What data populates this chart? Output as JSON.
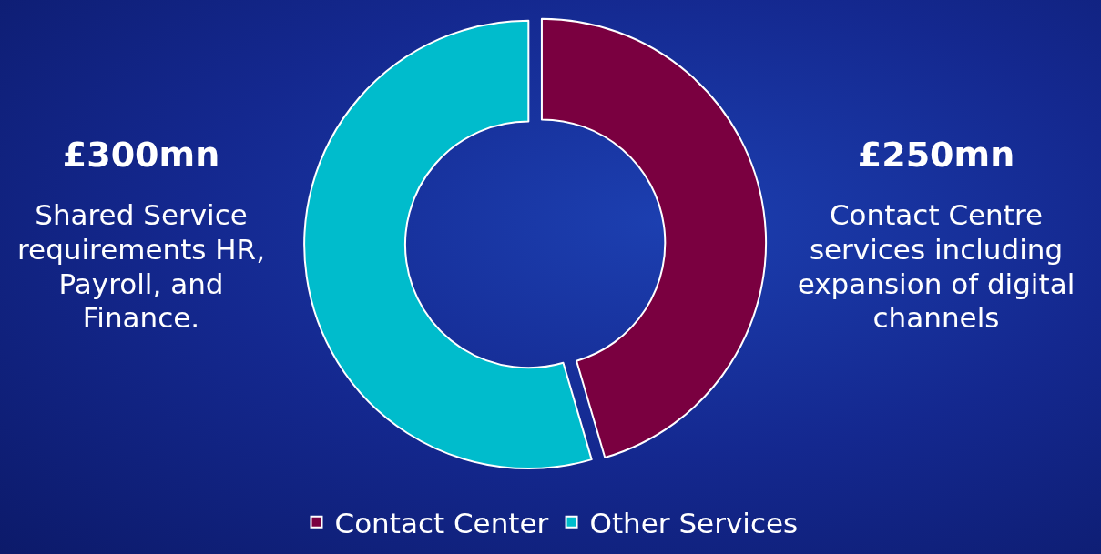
{
  "chart_data": {
    "type": "donut",
    "categories": [
      "Contact Center",
      "Other Services"
    ],
    "values": [
      250,
      300
    ],
    "colors": [
      "#7a0040",
      "#00bccc"
    ],
    "value_labels": [
      "£250mn",
      "£300mn"
    ],
    "annotations": [
      "Shared Service requirements HR, Payroll, and Finance.",
      "Contact Centre services including expansion of digital channels"
    ],
    "legend": "bottom"
  }
}
